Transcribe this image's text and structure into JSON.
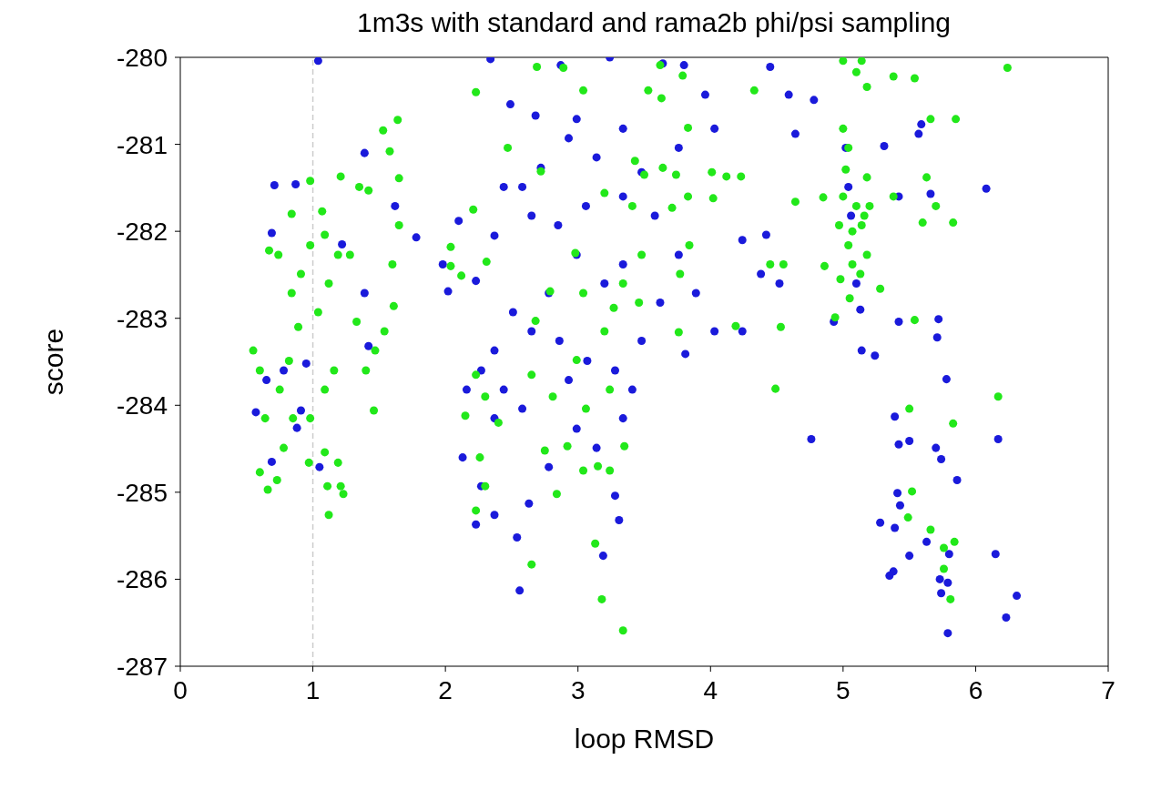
{
  "chart_data": {
    "type": "scatter",
    "title": "1m3s with standard and rama2b phi/psi sampling",
    "xlabel": "loop RMSD",
    "ylabel": "score",
    "xlim": [
      0,
      7
    ],
    "xticks": [
      0,
      1,
      2,
      3,
      4,
      5,
      6,
      7
    ],
    "ylim": [
      -287,
      -280
    ],
    "yticks": [
      -287,
      -286,
      -285,
      -284,
      -283,
      -282,
      -281,
      -280
    ],
    "marker": "circle",
    "ref_lines": [
      {
        "axis": "x",
        "value": 1,
        "color": "#cccccc",
        "line_style": "dashed"
      }
    ],
    "series": [
      {
        "color": "#1a1adb",
        "x": [
          1.04,
          2.34,
          2.87,
          3.24,
          3.64,
          3.8,
          4.45,
          2.49,
          2.68,
          2.99,
          3.34,
          3.96,
          4.59,
          4.78,
          4.64,
          5.59,
          5.57,
          5.02,
          5.31,
          1.39,
          6.08,
          5.66,
          5.42,
          5.04,
          1.62,
          0.71,
          0.69,
          1.78,
          1.98,
          2.1,
          2.02,
          2.23,
          2.37,
          2.58,
          2.72,
          2.93,
          3.14,
          3.48,
          3.76,
          4.03,
          4.24,
          4.42,
          4.52,
          4.38,
          4.03,
          4.24,
          3.89,
          3.76,
          3.62,
          3.34,
          3.2,
          2.99,
          2.78,
          2.65,
          2.51,
          2.37,
          2.27,
          2.44,
          2.58,
          2.37,
          2.16,
          2.13,
          2.27,
          2.37,
          2.23,
          2.54,
          2.56,
          2.63,
          2.78,
          2.99,
          3.14,
          3.28,
          3.31,
          3.19,
          3.34,
          3.41,
          3.28,
          3.07,
          2.93,
          2.86,
          3.48,
          3.81,
          3.58,
          3.34,
          3.06,
          2.85,
          2.65,
          2.44,
          4.93,
          5.14,
          5.24,
          5.13,
          5.42,
          5.72,
          5.71,
          5.39,
          5.42,
          5.5,
          5.7,
          5.74,
          5.86,
          6.17,
          5.78,
          4.76,
          5.28,
          5.41,
          5.43,
          5.39,
          5.5,
          5.38,
          5.35,
          5.63,
          5.8,
          6.15,
          5.73,
          5.74,
          5.79,
          6.23,
          6.31,
          5.79,
          0.57,
          0.65,
          0.78,
          0.95,
          0.91,
          0.88,
          0.69,
          1.05,
          0.87,
          1.22,
          1.39,
          1.42,
          5.0,
          5.06,
          5.1
        ],
        "values": [
          -280.04,
          -280.02,
          -280.09,
          -280.0,
          -280.07,
          -280.09,
          -280.11,
          -280.54,
          -280.67,
          -280.71,
          -280.82,
          -280.43,
          -280.43,
          -280.49,
          -280.88,
          -280.77,
          -280.88,
          -281.04,
          -281.02,
          -281.1,
          -281.51,
          -281.57,
          -281.6,
          -281.49,
          -281.71,
          -281.47,
          -282.02,
          -282.07,
          -282.38,
          -281.88,
          -282.69,
          -282.57,
          -282.05,
          -281.49,
          -281.27,
          -280.93,
          -281.15,
          -281.32,
          -281.04,
          -280.82,
          -282.1,
          -282.04,
          -282.6,
          -282.49,
          -283.15,
          -283.15,
          -282.71,
          -282.27,
          -282.82,
          -282.38,
          -282.6,
          -282.27,
          -282.71,
          -283.15,
          -282.93,
          -283.37,
          -283.6,
          -283.82,
          -284.04,
          -284.15,
          -283.82,
          -284.6,
          -284.93,
          -285.26,
          -285.37,
          -285.52,
          -286.13,
          -285.13,
          -284.71,
          -284.27,
          -284.49,
          -285.04,
          -285.32,
          -285.73,
          -284.15,
          -283.82,
          -283.6,
          -283.49,
          -283.71,
          -283.26,
          -283.26,
          -283.41,
          -281.82,
          -281.6,
          -281.71,
          -281.93,
          -281.82,
          -281.49,
          -283.04,
          -283.37,
          -283.43,
          -282.9,
          -283.04,
          -283.01,
          -283.22,
          -284.13,
          -284.45,
          -284.41,
          -284.49,
          -284.62,
          -284.86,
          -284.39,
          -283.7,
          -284.39,
          -285.35,
          -285.01,
          -285.15,
          -285.41,
          -285.73,
          -285.91,
          -285.96,
          -285.57,
          -285.71,
          -285.71,
          -286.0,
          -286.16,
          -286.62,
          -286.44,
          -286.19,
          -286.04,
          -284.08,
          -283.71,
          -283.6,
          -283.52,
          -284.06,
          -284.26,
          -284.65,
          -284.71,
          -281.46,
          -282.15,
          -282.71,
          -283.32,
          null,
          -281.82,
          -282.6
        ]
      },
      {
        "color": "#22e81a",
        "x": [
          0.55,
          0.6,
          0.64,
          0.6,
          0.66,
          0.73,
          0.78,
          0.85,
          0.75,
          0.82,
          0.89,
          0.84,
          0.91,
          0.98,
          0.98,
          1.07,
          0.84,
          0.67,
          0.74,
          1.09,
          1.19,
          1.28,
          1.21,
          1.35,
          1.42,
          1.53,
          1.64,
          1.58,
          1.65,
          1.65,
          1.6,
          1.61,
          1.54,
          1.47,
          1.46,
          1.4,
          1.33,
          1.16,
          1.09,
          0.98,
          0.97,
          1.09,
          1.11,
          1.12,
          1.19,
          1.21,
          1.23,
          1.04,
          1.12,
          2.04,
          2.04,
          2.12,
          2.23,
          2.21,
          2.31,
          2.47,
          2.15,
          2.23,
          2.3,
          2.26,
          2.3,
          2.23,
          2.4,
          2.65,
          2.65,
          2.68,
          2.79,
          2.81,
          2.84,
          2.72,
          2.89,
          2.69,
          2.98,
          3.04,
          3.04,
          2.99,
          3.06,
          3.04,
          2.92,
          2.75,
          3.13,
          3.18,
          3.34,
          3.15,
          3.24,
          3.35,
          3.2,
          3.24,
          3.27,
          3.2,
          3.41,
          3.5,
          3.43,
          3.53,
          3.62,
          3.63,
          3.79,
          3.83,
          3.74,
          3.64,
          3.83,
          3.71,
          3.84,
          3.77,
          3.76,
          3.48,
          3.46,
          3.34,
          4.01,
          4.02,
          4.12,
          4.23,
          4.33,
          4.45,
          4.55,
          4.19,
          4.53,
          4.49,
          4.64,
          4.85,
          4.86,
          5.0,
          5.1,
          5.14,
          5.18,
          5.38,
          5.54,
          5.66,
          5.85,
          6.24,
          5.0,
          5.04,
          5.02,
          5.0,
          4.97,
          5.04,
          5.07,
          5.13,
          5.18,
          5.14,
          5.1,
          5.18,
          5.2,
          5.16,
          4.98,
          5.05,
          4.94,
          5.28,
          5.38,
          5.63,
          5.6,
          5.7,
          5.83,
          5.54,
          5.5,
          5.83,
          6.17,
          5.52,
          5.49,
          5.66,
          5.76,
          5.76,
          5.81,
          5.84,
          5.07
        ],
        "values": [
          -283.37,
          -283.6,
          -284.15,
          -284.77,
          -284.97,
          -284.86,
          -284.49,
          -284.15,
          -283.82,
          -283.49,
          -283.1,
          -282.71,
          -282.49,
          -282.16,
          -281.42,
          -281.77,
          -281.8,
          -282.22,
          -282.27,
          -282.04,
          -282.27,
          -282.27,
          -281.37,
          -281.49,
          -281.53,
          -280.84,
          -280.72,
          -281.08,
          -281.39,
          -281.93,
          -282.38,
          -282.86,
          -283.15,
          -283.37,
          -284.06,
          -283.6,
          -283.04,
          -283.6,
          -283.82,
          -284.15,
          -284.66,
          -284.54,
          -284.93,
          -285.26,
          -284.66,
          -284.93,
          -285.02,
          -282.93,
          -282.6,
          -282.18,
          -282.4,
          -282.51,
          -280.4,
          -281.75,
          -282.35,
          -281.04,
          -284.12,
          -283.65,
          -283.9,
          -284.6,
          -284.93,
          -285.21,
          -284.2,
          -285.83,
          -283.65,
          -283.03,
          -282.69,
          -283.9,
          -285.02,
          -281.31,
          -280.12,
          -280.11,
          -282.25,
          -282.71,
          -280.38,
          -283.48,
          -284.04,
          -284.75,
          -284.47,
          -284.52,
          -285.59,
          -286.23,
          -286.59,
          -284.7,
          -284.75,
          -284.47,
          -283.15,
          -283.82,
          -282.88,
          -281.56,
          -281.71,
          -281.35,
          -281.19,
          -280.38,
          -280.09,
          -280.47,
          -280.21,
          -280.81,
          -281.35,
          -281.27,
          -281.6,
          -281.73,
          -282.16,
          -282.49,
          -283.16,
          -282.27,
          -282.82,
          -282.6,
          -281.32,
          -281.62,
          -281.37,
          -281.37,
          -280.38,
          -282.38,
          -282.38,
          -283.09,
          -283.1,
          -283.81,
          -281.66,
          -281.61,
          -282.4,
          -280.04,
          -280.17,
          -280.04,
          -280.34,
          -280.22,
          -280.24,
          -280.71,
          -280.71,
          -280.12,
          -280.82,
          -281.04,
          -281.29,
          -281.6,
          -281.93,
          -282.16,
          -282.38,
          -282.49,
          -282.27,
          -281.93,
          -281.71,
          -281.38,
          -281.71,
          -281.82,
          -282.55,
          -282.77,
          -282.99,
          -282.66,
          -281.6,
          -281.38,
          -281.9,
          -281.71,
          -281.9,
          -283.02,
          -284.04,
          -284.21,
          -283.9,
          -284.99,
          -285.29,
          -285.43,
          -285.64,
          -285.88,
          -286.23,
          -285.57,
          -282.0
        ]
      }
    ]
  }
}
